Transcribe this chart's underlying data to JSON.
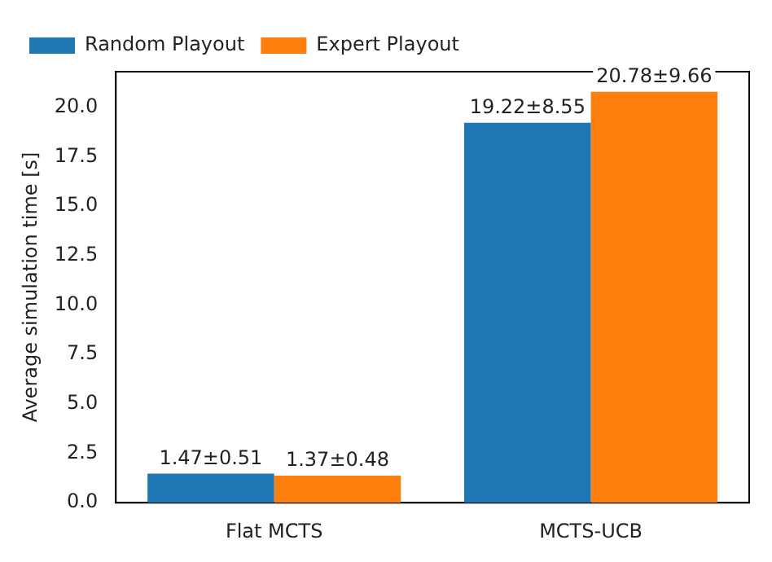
{
  "chart_data": {
    "type": "bar",
    "ylabel": "Average simulation time [s]",
    "categories": [
      "Flat MCTS",
      "MCTS-UCB"
    ],
    "series": [
      {
        "name": "Random Playout",
        "color": "#1f77b4",
        "values": [
          1.47,
          19.22
        ],
        "value_labels": [
          "1.47±0.51",
          "19.22±8.55"
        ]
      },
      {
        "name": "Expert Playout",
        "color": "#ff7f0e",
        "values": [
          1.37,
          20.78
        ],
        "value_labels": [
          "1.37±0.48",
          "20.78±9.66"
        ]
      }
    ],
    "ylim": [
      0,
      21.8
    ],
    "yticks": [
      {
        "value": 0,
        "label": "0.0"
      },
      {
        "value": 2.5,
        "label": "2.5"
      },
      {
        "value": 5,
        "label": "5.0"
      },
      {
        "value": 7.5,
        "label": "7.5"
      },
      {
        "value": 10,
        "label": "10.0"
      },
      {
        "value": 12.5,
        "label": "12.5"
      },
      {
        "value": 15,
        "label": "15.0"
      },
      {
        "value": 17.5,
        "label": "17.5"
      },
      {
        "value": 20,
        "label": "20.0"
      }
    ],
    "grid": false,
    "legend": "top left"
  }
}
